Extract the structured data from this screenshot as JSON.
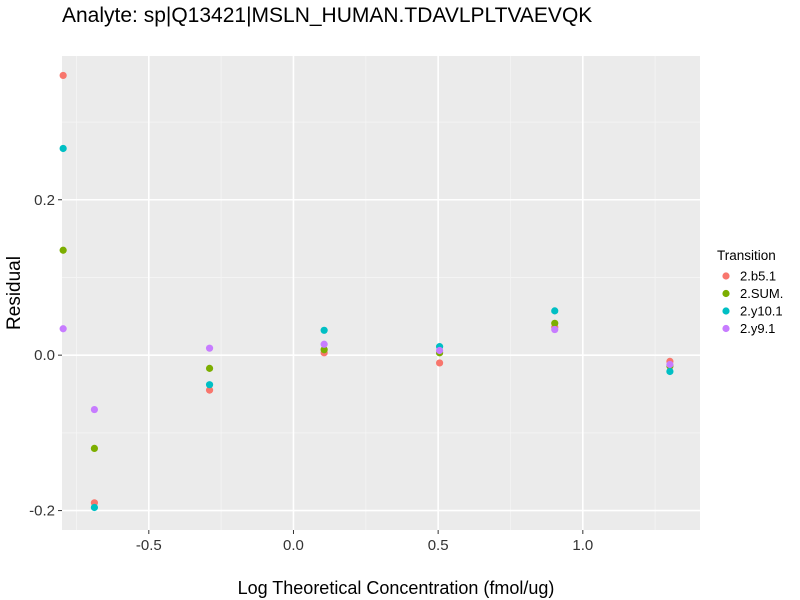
{
  "chart_data": {
    "type": "scatter",
    "title": "Analyte: sp|Q13421|MSLN_HUMAN.TDAVLPLTVAEVQK",
    "xlabel": "Log Theoretical Concentration (fmol/ug)",
    "ylabel": "Residual",
    "xlim": [
      -0.8,
      1.405
    ],
    "ylim": [
      -0.225,
      0.385
    ],
    "x_ticks": [
      -0.5,
      0.0,
      0.5,
      1.0
    ],
    "x_tick_labels": [
      "-0.5",
      "0.0",
      "0.5",
      "1.0"
    ],
    "y_ticks": [
      -0.2,
      0.0,
      0.2
    ],
    "y_tick_labels": [
      "-0.2",
      "0.0",
      "0.2"
    ],
    "grid": true,
    "legend": {
      "title": "Transition",
      "position": "right"
    },
    "series": [
      {
        "name": "2.b5.1",
        "color": "#F8766D",
        "x": [
          -0.796,
          -0.688,
          -0.29,
          0.106,
          0.505,
          0.903,
          1.301
        ],
        "y": [
          0.36,
          -0.19,
          -0.045,
          0.003,
          -0.01,
          0.036,
          -0.008
        ]
      },
      {
        "name": "2.SUM.",
        "color": "#7CAE00",
        "x": [
          -0.796,
          -0.688,
          -0.29,
          0.106,
          0.505,
          0.903,
          1.301
        ],
        "y": [
          0.135,
          -0.12,
          -0.017,
          0.007,
          0.003,
          0.041,
          -0.014
        ]
      },
      {
        "name": "2.y10.1",
        "color": "#00BFC4",
        "x": [
          -0.796,
          -0.688,
          -0.29,
          0.106,
          0.505,
          0.903,
          1.301
        ],
        "y": [
          0.266,
          -0.196,
          -0.038,
          0.032,
          0.011,
          0.057,
          -0.021
        ]
      },
      {
        "name": "2.y9.1",
        "color": "#C77CFF",
        "x": [
          -0.796,
          -0.688,
          -0.29,
          0.106,
          0.505,
          0.903,
          1.301
        ],
        "y": [
          0.034,
          -0.07,
          0.009,
          0.014,
          0.006,
          0.033,
          -0.012
        ]
      }
    ]
  }
}
